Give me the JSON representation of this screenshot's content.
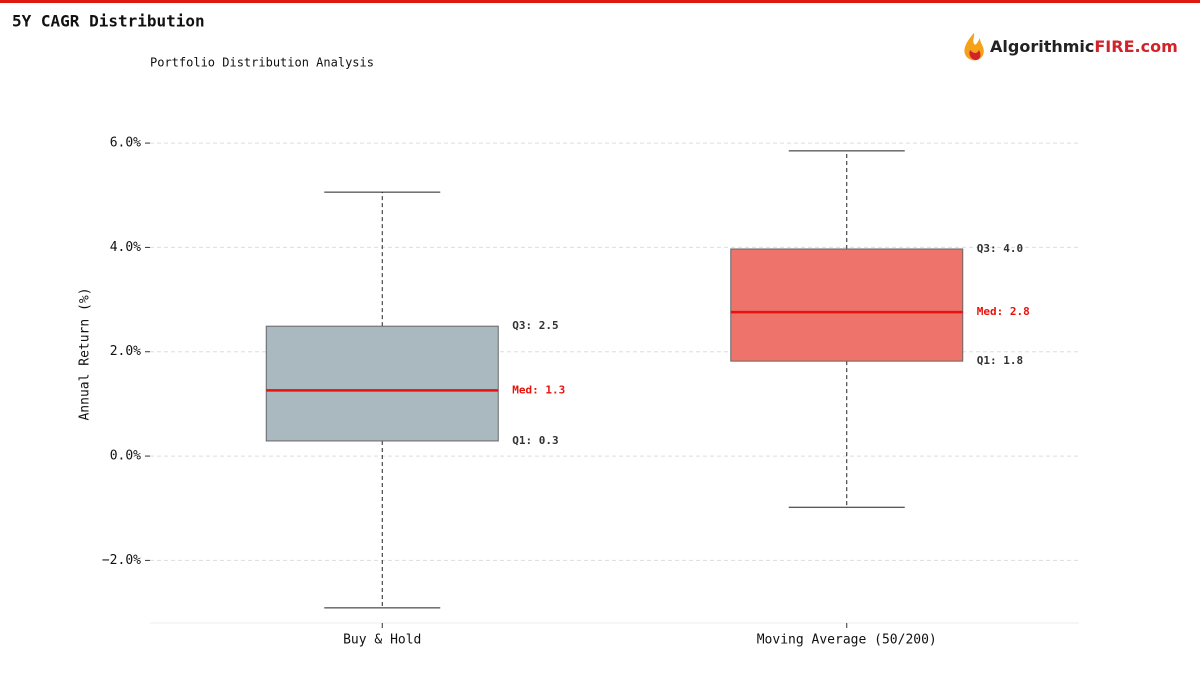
{
  "chart_data": {
    "type": "box",
    "title": "5Y CAGR Distribution",
    "subtitle": "Portfolio Distribution Analysis",
    "brand": {
      "left": "Algorithmic",
      "right": "FIRE.com"
    },
    "ylabel": "Annual Return (%)",
    "categories": [
      "Buy & Hold",
      "Moving Average (50/200)"
    ],
    "boxes": [
      {
        "color": "#aab8bf",
        "stats": {
          "whislo": -2.91,
          "q1": 0.29,
          "med": 1.26,
          "q3": 2.49,
          "whishi": 5.06
        },
        "stat_labels": {
          "q3": "Q3: 2.5",
          "med": "Med: 1.3",
          "q1": "Q1: 0.3"
        }
      },
      {
        "color": "#ee736b",
        "stats": {
          "whislo": -0.98,
          "q1": 1.82,
          "med": 2.76,
          "q3": 3.97,
          "whishi": 5.85
        },
        "stat_labels": {
          "q3": "Q3: 4.0",
          "med": "Med: 2.8",
          "q1": "Q1: 1.8"
        }
      }
    ],
    "median_color": "#e8120c",
    "ylim": [
      -3.2,
      6.5
    ],
    "yticks": [
      {
        "value": -2,
        "label": "−2.0%"
      },
      {
        "value": 0,
        "label": "0.0%"
      },
      {
        "value": 2,
        "label": "2.0%"
      },
      {
        "value": 4,
        "label": "4.0%"
      },
      {
        "value": 6,
        "label": "6.0%"
      }
    ],
    "grid": true
  }
}
